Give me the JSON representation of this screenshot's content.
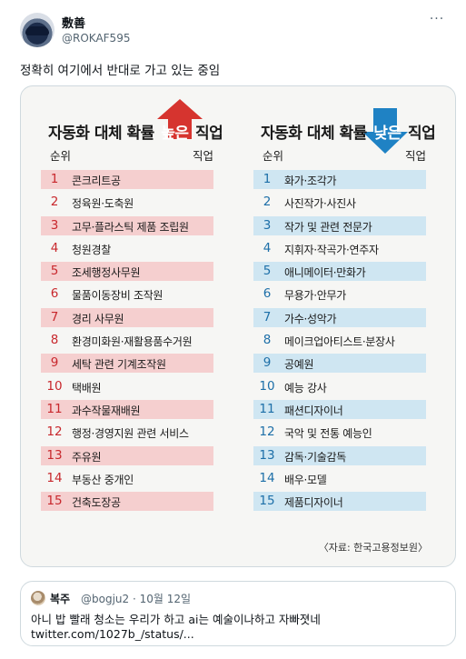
{
  "tweet": {
    "display_name": "敷善",
    "handle": "@ROKAF595",
    "more_label": "···",
    "text": "정확히 여기에서 반대로 가고 있는 중임"
  },
  "infographic": {
    "left": {
      "title_prefix": "자동화 대체 확률 ",
      "title_highlight": "높은",
      "title_suffix": " 직업",
      "rank_header": "순위",
      "job_header": "직업",
      "arrow_color": "#d6342f",
      "shade_color": "#f5cfcf",
      "rows": [
        {
          "rank": "1",
          "job": "콘크리트공"
        },
        {
          "rank": "2",
          "job": "정육원·도축원"
        },
        {
          "rank": "3",
          "job": "고무·플라스틱 제품 조립원"
        },
        {
          "rank": "4",
          "job": "청원경찰"
        },
        {
          "rank": "5",
          "job": "조세행정사무원"
        },
        {
          "rank": "6",
          "job": "물품이동장비 조작원"
        },
        {
          "rank": "7",
          "job": "경리 사무원"
        },
        {
          "rank": "8",
          "job": "환경미화원·재활용품수거원"
        },
        {
          "rank": "9",
          "job": "세탁 관련 기계조작원"
        },
        {
          "rank": "10",
          "job": "택배원"
        },
        {
          "rank": "11",
          "job": "과수작물재배원"
        },
        {
          "rank": "12",
          "job": "행정·경영지원 관련 서비스"
        },
        {
          "rank": "13",
          "job": "주유원"
        },
        {
          "rank": "14",
          "job": "부동산 중개인"
        },
        {
          "rank": "15",
          "job": "건축도장공"
        }
      ]
    },
    "right": {
      "title_prefix": "자동화 대체 확률 ",
      "title_highlight": "낮은",
      "title_suffix": " 직업",
      "rank_header": "순위",
      "job_header": "직업",
      "arrow_color": "#1f82c4",
      "shade_color": "#cfe6f2",
      "rows": [
        {
          "rank": "1",
          "job": "화가·조각가"
        },
        {
          "rank": "2",
          "job": "사진작가·사진사"
        },
        {
          "rank": "3",
          "job": "작가 및 관련 전문가"
        },
        {
          "rank": "4",
          "job": "지휘자·작곡가·연주자"
        },
        {
          "rank": "5",
          "job": "애니메이터·만화가"
        },
        {
          "rank": "6",
          "job": "무용가·안무가"
        },
        {
          "rank": "7",
          "job": "가수·성악가"
        },
        {
          "rank": "8",
          "job": "메이크업아티스트·분장사"
        },
        {
          "rank": "9",
          "job": "공예원"
        },
        {
          "rank": "10",
          "job": "예능 강사"
        },
        {
          "rank": "11",
          "job": "패션디자이너"
        },
        {
          "rank": "12",
          "job": "국악 및 전통 예능인"
        },
        {
          "rank": "13",
          "job": "감독·기술감독"
        },
        {
          "rank": "14",
          "job": "배우·모델"
        },
        {
          "rank": "15",
          "job": "제품디자이너"
        }
      ]
    },
    "source": "〈자료: 한국고용정보원〉"
  },
  "quote": {
    "name": "복주",
    "meta": "@bogju2 · 10월 12일",
    "text": "아니 밥 빨래 청소는 우리가 하고 ai는 예술이나하고 자빠졋네",
    "link": "twitter.com/1027b_/status/..."
  }
}
